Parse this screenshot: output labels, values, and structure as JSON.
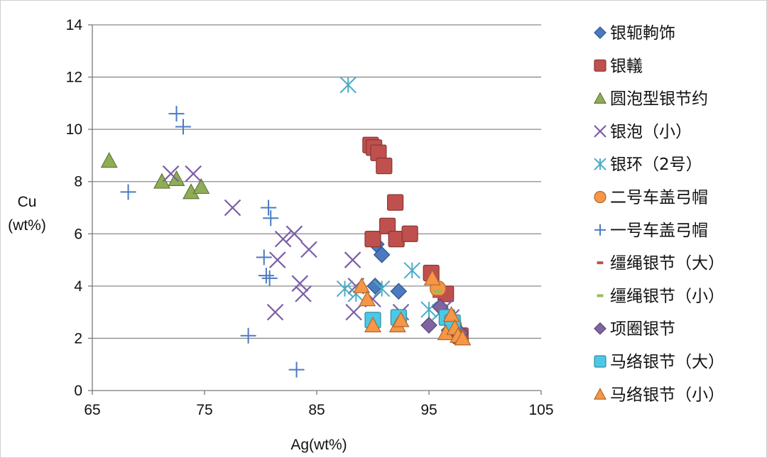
{
  "chart_data": {
    "type": "scatter",
    "title": "",
    "xlabel": "Ag(wt%)",
    "ylabel_lines": [
      "Cu",
      "(wt%)"
    ],
    "xlim": [
      65,
      105
    ],
    "ylim": [
      0,
      14
    ],
    "x_ticks": [
      65,
      75,
      85,
      95,
      105
    ],
    "y_ticks": [
      0,
      2,
      4,
      6,
      8,
      10,
      12,
      14
    ],
    "grid": "horizontal",
    "legend_position": "right",
    "series": [
      {
        "name": "银轭軥饰",
        "marker": "diamond",
        "color": "#4a7ac0",
        "points": [
          [
            90.3,
            5.6
          ],
          [
            90.8,
            5.2
          ],
          [
            90.2,
            4.0
          ],
          [
            92.3,
            3.8
          ]
        ]
      },
      {
        "name": "银轙",
        "marker": "square",
        "color": "#c0504d",
        "points": [
          [
            89.8,
            9.4
          ],
          [
            90.1,
            9.3
          ],
          [
            90.5,
            9.1
          ],
          [
            91.0,
            8.6
          ],
          [
            92.0,
            7.2
          ],
          [
            90.0,
            5.8
          ],
          [
            91.3,
            6.3
          ],
          [
            92.1,
            5.8
          ],
          [
            93.3,
            6.0
          ],
          [
            95.2,
            4.5
          ],
          [
            96.5,
            3.7
          ],
          [
            97.8,
            2.1
          ]
        ]
      },
      {
        "name": "圆泡型银节约",
        "marker": "triangle",
        "color": "#8fad55",
        "points": [
          [
            66.5,
            8.8
          ],
          [
            71.2,
            8.0
          ],
          [
            72.5,
            8.1
          ],
          [
            73.8,
            7.6
          ],
          [
            74.7,
            7.8
          ]
        ]
      },
      {
        "name": "银泡（小）",
        "marker": "x",
        "color": "#7b5ea7",
        "points": [
          [
            72.0,
            8.3
          ],
          [
            74.0,
            8.3
          ],
          [
            77.5,
            7.0
          ],
          [
            82.0,
            5.8
          ],
          [
            83.0,
            6.0
          ],
          [
            81.5,
            5.0
          ],
          [
            84.3,
            5.4
          ],
          [
            81.3,
            3.0
          ],
          [
            83.5,
            4.1
          ],
          [
            83.8,
            3.7
          ],
          [
            88.2,
            5.0
          ],
          [
            88.3,
            3.0
          ],
          [
            88.5,
            4.0
          ],
          [
            90.0,
            3.5
          ],
          [
            92.5,
            3.0
          ],
          [
            96.5,
            3.2
          ],
          [
            97.0,
            2.8
          ]
        ]
      },
      {
        "name": "银环（2号）",
        "marker": "asterisk",
        "color": "#4bacc6",
        "points": [
          [
            87.8,
            11.7
          ],
          [
            87.5,
            3.9
          ],
          [
            88.5,
            3.7
          ],
          [
            90.8,
            3.9
          ],
          [
            93.5,
            4.6
          ],
          [
            95.0,
            3.1
          ],
          [
            96.0,
            3.0
          ]
        ]
      },
      {
        "name": "二号车盖弓帽",
        "marker": "circle",
        "color": "#f79646",
        "points": [
          [
            95.8,
            3.9
          ],
          [
            97.2,
            2.5
          ]
        ]
      },
      {
        "name": "一号车盖弓帽",
        "marker": "plus",
        "color": "#4a7ac0",
        "points": [
          [
            68.2,
            7.6
          ],
          [
            72.5,
            10.6
          ],
          [
            73.1,
            10.1
          ],
          [
            80.7,
            7.0
          ],
          [
            80.9,
            6.6
          ],
          [
            80.3,
            5.1
          ],
          [
            80.5,
            4.4
          ],
          [
            80.8,
            4.3
          ],
          [
            78.9,
            2.1
          ],
          [
            83.2,
            0.8
          ]
        ]
      },
      {
        "name": "缰绳银节（大）",
        "marker": "dash",
        "color": "#c0504d",
        "points": [
          [
            95.7,
            3.6
          ]
        ]
      },
      {
        "name": "缰绳银节（小）",
        "marker": "dash",
        "color": "#9bbb59",
        "points": [
          [
            95.8,
            3.8
          ]
        ]
      },
      {
        "name": "项圈银节",
        "marker": "diamond",
        "color": "#8064a2",
        "points": [
          [
            95.0,
            2.5
          ],
          [
            96.0,
            3.2
          ],
          [
            96.8,
            2.3
          ],
          [
            97.8,
            2.2
          ]
        ]
      },
      {
        "name": "马络银节（大）",
        "marker": "square",
        "color": "#4bc8e6",
        "points": [
          [
            90.0,
            2.7
          ],
          [
            92.3,
            2.8
          ],
          [
            96.6,
            2.8
          ],
          [
            97.1,
            2.6
          ]
        ]
      },
      {
        "name": "马络银节（小）",
        "marker": "triangle",
        "color": "#f79646",
        "points": [
          [
            89.0,
            4.0
          ],
          [
            89.5,
            3.5
          ],
          [
            90.0,
            2.5
          ],
          [
            92.2,
            2.5
          ],
          [
            92.5,
            2.7
          ],
          [
            95.3,
            4.3
          ],
          [
            96.5,
            2.2
          ],
          [
            97.0,
            2.9
          ],
          [
            97.3,
            2.4
          ],
          [
            97.6,
            2.1
          ],
          [
            98.0,
            2.0
          ]
        ]
      }
    ]
  }
}
